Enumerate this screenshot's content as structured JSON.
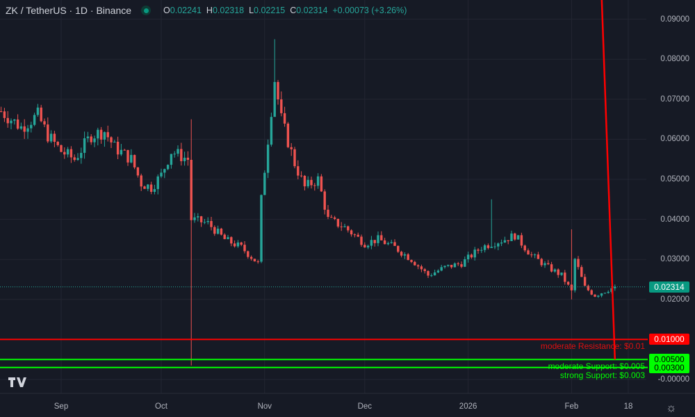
{
  "header": {
    "symbol": "ZK / TetherUS · 1D · Binance",
    "o_label": "O",
    "o": "0.02241",
    "h_label": "H",
    "h": "0.02318",
    "l_label": "L",
    "l": "0.02215",
    "c_label": "C",
    "c": "0.02314",
    "change": "+0.00073 (+3.26%)"
  },
  "colors": {
    "up": "#26a69a",
    "down": "#ef5350",
    "background": "#161a25",
    "resistance": "#ff0000",
    "support": "#00ff00"
  },
  "chart_data": {
    "type": "candlestick",
    "ylim": [
      -0.003,
      0.094
    ],
    "y_ticks": [
      "0.09000",
      "0.08000",
      "0.07000",
      "0.06000",
      "0.05000",
      "0.04000",
      "0.03000",
      "0.02000",
      "-0.00000"
    ],
    "y_tick_values": [
      0.09,
      0.08,
      0.07,
      0.06,
      0.05,
      0.04,
      0.03,
      0.02,
      0.0
    ],
    "x_ticks": [
      "Sep",
      "Oct",
      "Nov",
      "Dec",
      "2026",
      "Feb",
      "18"
    ],
    "x_tick_dates": [
      "2025-09-01",
      "2025-10-01",
      "2025-11-01",
      "2025-12-01",
      "2026-01-01",
      "2026-02-01",
      "2026-02-18"
    ],
    "x_range": [
      "2025-08-14",
      "2026-02-25"
    ],
    "grid": true,
    "close_path": [
      [
        "2025-08-14",
        0.067
      ],
      [
        "2025-08-20",
        0.063
      ],
      [
        "2025-08-25",
        0.066
      ],
      [
        "2025-08-28",
        0.061
      ],
      [
        "2025-09-01",
        0.057
      ],
      [
        "2025-09-05",
        0.055
      ],
      [
        "2025-09-10",
        0.061
      ],
      [
        "2025-09-14",
        0.062
      ],
      [
        "2025-09-17",
        0.058
      ],
      [
        "2025-09-22",
        0.055
      ],
      [
        "2025-09-25",
        0.049
      ],
      [
        "2025-09-28",
        0.048
      ],
      [
        "2025-10-01",
        0.051
      ],
      [
        "2025-10-04",
        0.057
      ],
      [
        "2025-10-09",
        0.055
      ],
      [
        "2025-10-10",
        0.04
      ],
      [
        "2025-10-15",
        0.039
      ],
      [
        "2025-10-20",
        0.035
      ],
      [
        "2025-10-25",
        0.033
      ],
      [
        "2025-10-30",
        0.029
      ],
      [
        "2025-10-31",
        0.045
      ],
      [
        "2025-11-02",
        0.06
      ],
      [
        "2025-11-04",
        0.075
      ],
      [
        "2025-11-06",
        0.065
      ],
      [
        "2025-11-10",
        0.054
      ],
      [
        "2025-11-13",
        0.048
      ],
      [
        "2025-11-17",
        0.05
      ],
      [
        "2025-11-20",
        0.04
      ],
      [
        "2025-11-25",
        0.038
      ],
      [
        "2025-12-01",
        0.034
      ],
      [
        "2025-12-05",
        0.035
      ],
      [
        "2025-12-10",
        0.033
      ],
      [
        "2025-12-15",
        0.03
      ],
      [
        "2025-12-20",
        0.026
      ],
      [
        "2025-12-25",
        0.028
      ],
      [
        "2025-12-30",
        0.029
      ],
      [
        "2026-01-05",
        0.033
      ],
      [
        "2026-01-08",
        0.034
      ],
      [
        "2026-01-12",
        0.035
      ],
      [
        "2026-01-15",
        0.036
      ],
      [
        "2026-01-20",
        0.031
      ],
      [
        "2026-01-25",
        0.028
      ],
      [
        "2026-01-29",
        0.026
      ],
      [
        "2026-02-01",
        0.022
      ],
      [
        "2026-02-02",
        0.03
      ],
      [
        "2026-02-05",
        0.023
      ],
      [
        "2026-02-08",
        0.021
      ],
      [
        "2026-02-14",
        0.02314
      ]
    ],
    "notable_wicks": [
      [
        "2025-10-10",
        0.065,
        0.0035
      ],
      [
        "2025-11-04",
        0.085,
        0.07
      ],
      [
        "2026-01-08",
        0.045,
        0.033
      ],
      [
        "2026-02-01",
        0.0375,
        0.02
      ]
    ],
    "last_price": "0.02314",
    "levels": [
      {
        "label": "moderate Resistance: $0.01",
        "value": 0.01,
        "badge": "0.01000",
        "type": "resistance"
      },
      {
        "label": "moderate Support: $0.005",
        "value": 0.005,
        "badge": "0.00500",
        "type": "support"
      },
      {
        "label": "strong Support: $0.003",
        "value": 0.003,
        "badge": "0.00300",
        "type": "support"
      }
    ],
    "trend_line": {
      "from": [
        "2026-02-09",
        0.095
      ],
      "to": [
        "2026-02-14",
        0.005
      ]
    }
  },
  "footer": {
    "logo": "TV"
  }
}
